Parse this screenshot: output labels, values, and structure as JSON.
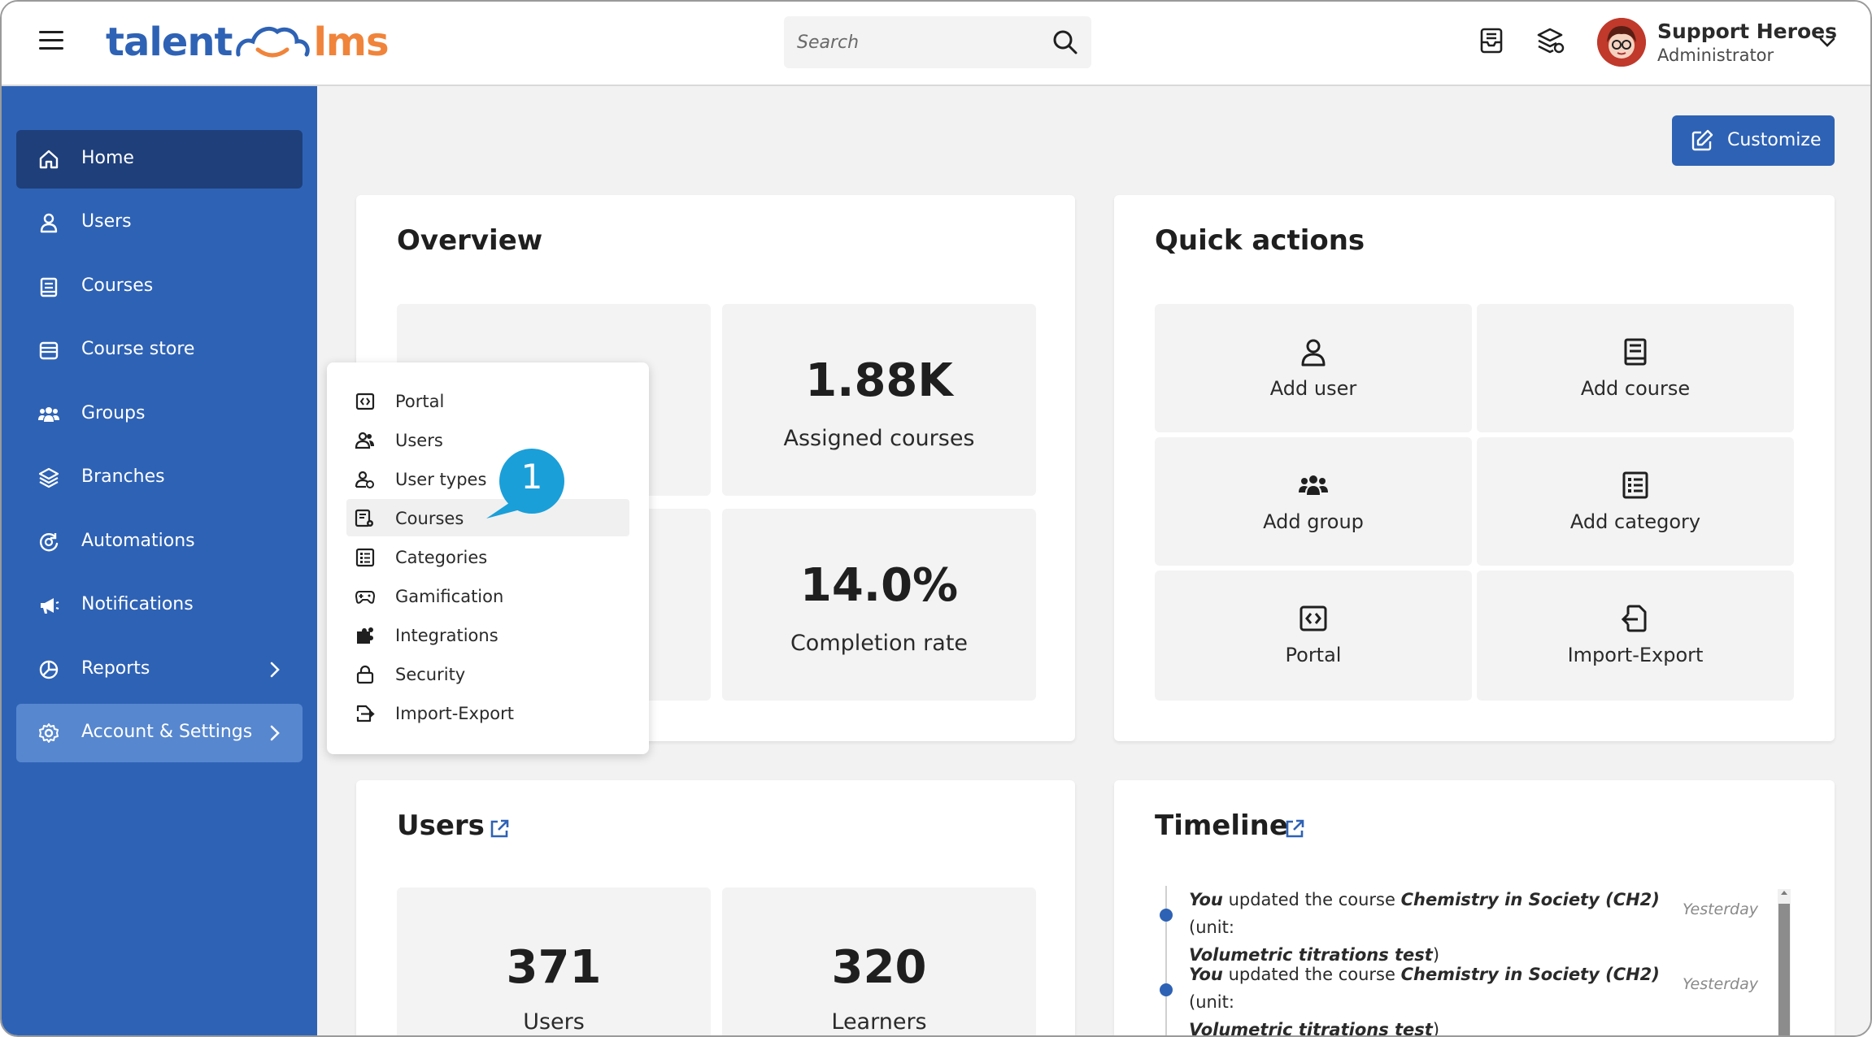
{
  "header": {
    "logo_left": "talent",
    "logo_right": "lms",
    "search_placeholder": "Search",
    "user_name": "Support Heroes",
    "user_role": "Administrator"
  },
  "sidebar": {
    "items": [
      {
        "label": "Home",
        "icon": "home-icon"
      },
      {
        "label": "Users",
        "icon": "user-icon"
      },
      {
        "label": "Courses",
        "icon": "book-icon"
      },
      {
        "label": "Course store",
        "icon": "store-icon"
      },
      {
        "label": "Groups",
        "icon": "group-icon"
      },
      {
        "label": "Branches",
        "icon": "layers-icon"
      },
      {
        "label": "Automations",
        "icon": "automation-icon"
      },
      {
        "label": "Notifications",
        "icon": "megaphone-icon"
      },
      {
        "label": "Reports",
        "icon": "pie-chart-icon"
      },
      {
        "label": "Account & Settings",
        "icon": "gear-icon"
      }
    ]
  },
  "toolbar": {
    "customize_label": "Customize"
  },
  "overview": {
    "title": "Overview",
    "assigned_courses_value": "1.88K",
    "assigned_courses_label": "Assigned courses",
    "completion_rate_value": "14.0%",
    "completion_rate_label": "Completion rate"
  },
  "quick_actions": {
    "title": "Quick actions",
    "items": [
      {
        "label": "Add user",
        "icon": "user-icon"
      },
      {
        "label": "Add course",
        "icon": "book-icon"
      },
      {
        "label": "Add group",
        "icon": "group-icon"
      },
      {
        "label": "Add category",
        "icon": "list-icon"
      },
      {
        "label": "Portal",
        "icon": "code-window-icon"
      },
      {
        "label": "Import-Export",
        "icon": "import-export-icon"
      }
    ]
  },
  "users_card": {
    "title": "Users",
    "users_value": "371",
    "users_label": "Users",
    "learners_value": "320",
    "learners_label": "Learners"
  },
  "timeline": {
    "title": "Timeline",
    "entries": [
      {
        "actor": "You",
        "action": " updated the course ",
        "course": "Chemistry in Society (CH2)",
        "unit_prefix": " (unit:",
        "unit": "Volumetric titrations test",
        "unit_suffix": ")",
        "time": "Yesterday"
      },
      {
        "actor": "You",
        "action": " updated the course ",
        "course": "Chemistry in Society (CH2)",
        "unit_prefix": " (unit:",
        "unit": "Volumetric titrations test",
        "unit_suffix": ")",
        "time": "Yesterday"
      }
    ]
  },
  "settings_menu": {
    "items": [
      {
        "label": "Portal",
        "icon": "code-window-icon"
      },
      {
        "label": "Users",
        "icon": "users-icon"
      },
      {
        "label": "User types",
        "icon": "user-types-icon"
      },
      {
        "label": "Courses",
        "icon": "course-settings-icon"
      },
      {
        "label": "Categories",
        "icon": "list-icon"
      },
      {
        "label": "Gamification",
        "icon": "gamepad-icon"
      },
      {
        "label": "Integrations",
        "icon": "puzzle-icon"
      },
      {
        "label": "Security",
        "icon": "lock-icon"
      },
      {
        "label": "Import-Export",
        "icon": "import-export-icon"
      }
    ]
  },
  "callout": {
    "number": "1"
  },
  "colors": {
    "brand_blue": "#2e62b5",
    "sidebar_active": "#1f3f7a",
    "sidebar_open": "#5787cf",
    "logo_orange": "#f0843a",
    "callout": "#1a9fd9"
  }
}
